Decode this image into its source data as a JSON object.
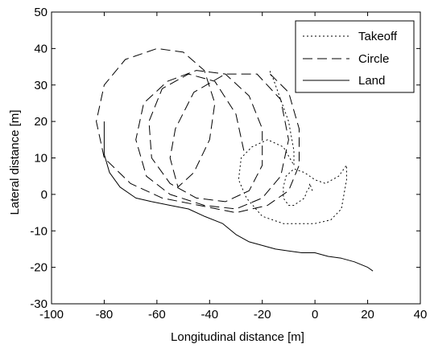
{
  "chart_data": {
    "type": "line",
    "title": "",
    "xlabel": "Longitudinal distance [m]",
    "ylabel": "Lateral distance [m]",
    "xlim": [
      -100,
      40
    ],
    "ylim": [
      -30,
      50
    ],
    "xticks": [
      -100,
      -80,
      -60,
      -40,
      -20,
      0,
      20,
      40
    ],
    "yticks": [
      -30,
      -20,
      -10,
      0,
      10,
      20,
      30,
      40,
      50
    ],
    "xtick_labels": [
      "-100",
      "-80",
      "-60",
      "-40",
      "-20",
      "0",
      "20",
      "40"
    ],
    "ytick_labels": [
      "-30",
      "-20",
      "-10",
      "0",
      "10",
      "20",
      "30",
      "40",
      "50"
    ],
    "grid": false,
    "legend_position": "top-right",
    "series": [
      {
        "name": "Takeoff",
        "style": "dotted",
        "color": "#000000",
        "x": [
          -1,
          -2,
          -2,
          -3,
          -4,
          -6,
          -8,
          -10,
          -12,
          -12,
          -11,
          -8,
          -4,
          0,
          4,
          9,
          12,
          12,
          10,
          6,
          0,
          -6,
          -12,
          -20,
          -26,
          -29,
          -28,
          -24,
          -18,
          -12,
          -8,
          -8,
          -10,
          -14,
          -16,
          -17,
          -17
        ],
        "y": [
          1,
          3,
          2,
          1,
          -1,
          -2,
          -3,
          -3,
          -1,
          2,
          5,
          7,
          6,
          4,
          3,
          5,
          8,
          4,
          -4,
          -7,
          -8,
          -8,
          -8,
          -6,
          -1,
          4,
          10,
          13,
          15,
          13,
          8,
          12,
          20,
          28,
          32,
          33,
          34
        ]
      },
      {
        "name": "Circle",
        "style": "dashed",
        "color": "#000000",
        "x": [
          -17,
          -10,
          -6,
          -6,
          -10,
          -18,
          -30,
          -44,
          -58,
          -70,
          -80,
          -83,
          -80,
          -72,
          -60,
          -50,
          -42,
          -38,
          -40,
          -46,
          -52,
          -55,
          -53,
          -46,
          -34,
          -22,
          -13,
          -10,
          -13,
          -20,
          -30,
          -42,
          -55,
          -64,
          -68,
          -65,
          -56,
          -45,
          -34,
          -25,
          -20,
          -20,
          -25,
          -34,
          -45,
          -55,
          -62,
          -63,
          -58,
          -48,
          -38,
          -30,
          -27
        ],
        "y": [
          33,
          28,
          18,
          8,
          1,
          -3,
          -5,
          -3,
          -1,
          3,
          10,
          20,
          30,
          37,
          40,
          39,
          34,
          25,
          15,
          6,
          2,
          10,
          18,
          28,
          33,
          33,
          26,
          15,
          5,
          -1,
          -4,
          -3,
          0,
          5,
          15,
          25,
          31,
          34,
          33,
          27,
          18,
          8,
          1,
          -2,
          -1,
          3,
          10,
          20,
          29,
          33,
          31,
          22,
          12
        ]
      },
      {
        "name": "Land",
        "style": "solid",
        "color": "#000000",
        "x": [
          -80,
          -80,
          -78,
          -74,
          -68,
          -62,
          -55,
          -48,
          -42,
          -35,
          -30,
          -25,
          -20,
          -15,
          -10,
          -5,
          0,
          5,
          10,
          15,
          20,
          22
        ],
        "y": [
          20,
          11,
          6,
          2,
          -1,
          -2,
          -3,
          -4,
          -6,
          -8,
          -11,
          -13,
          -14,
          -15,
          -15.5,
          -16,
          -16,
          -17,
          -17.5,
          -18.5,
          -20,
          -21
        ]
      }
    ]
  },
  "legend": {
    "items": [
      {
        "label": "Takeoff",
        "style": "dotted"
      },
      {
        "label": "Circle",
        "style": "dashed"
      },
      {
        "label": "Land",
        "style": "solid"
      }
    ]
  }
}
